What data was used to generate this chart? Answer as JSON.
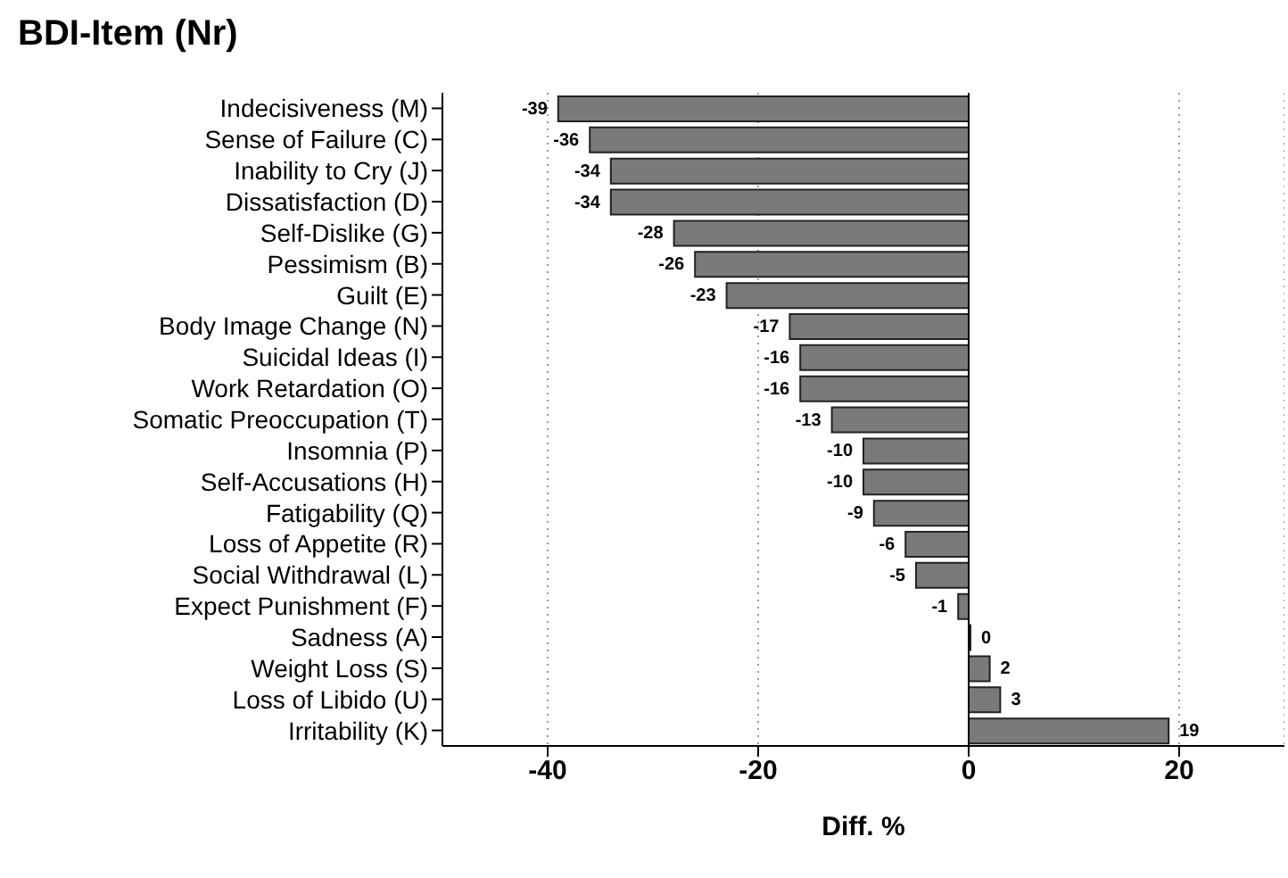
{
  "chart_data": {
    "type": "bar",
    "orientation": "horizontal",
    "ylabel": "BDI-Item (Nr)",
    "xlabel": "Diff. %",
    "categories": [
      "Indecisiveness (M)",
      "Sense of Failure (C)",
      "Inability to Cry (J)",
      "Dissatisfaction (D)",
      "Self-Dislike (G)",
      "Pessimism (B)",
      "Guilt (E)",
      "Body Image Change (N)",
      "Suicidal Ideas (I)",
      "Work Retardation (O)",
      "Somatic Preoccupation (T)",
      "Insomnia (P)",
      "Self-Accusations (H)",
      "Fatigability (Q)",
      "Loss of Appetite (R)",
      "Social Withdrawal (L)",
      "Expect Punishment (F)",
      "Sadness (A)",
      "Weight Loss (S)",
      "Loss of Libido (U)",
      "Irritability (K)"
    ],
    "values": [
      -39,
      -36,
      -34,
      -34,
      -28,
      -26,
      -23,
      -17,
      -16,
      -16,
      -13,
      -10,
      -10,
      -9,
      -6,
      -5,
      -1,
      0,
      2,
      3,
      19
    ],
    "color": "#7a7a7a",
    "data_labels": true,
    "xlim": [
      -50,
      30
    ],
    "xticks": [
      -40,
      -20,
      0,
      20
    ],
    "grid": "x",
    "ref_lines": [
      {
        "axis": "x",
        "value": 0,
        "color": "#000000",
        "line_style": "solid"
      }
    ]
  }
}
